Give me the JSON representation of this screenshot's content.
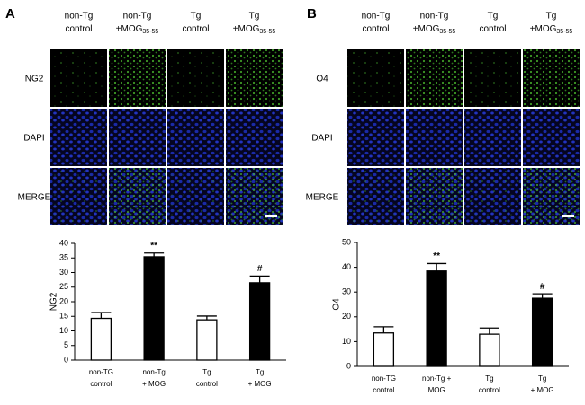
{
  "panels": [
    {
      "letter": "A",
      "columns": [
        {
          "line1": "non-Tg",
          "line2": "control"
        },
        {
          "line1": "non-Tg",
          "line2": "+MOG",
          "sub": "35-55"
        },
        {
          "line1": "Tg",
          "line2": "control"
        },
        {
          "line1": "Tg",
          "line2": "+MOG",
          "sub": "35-55"
        }
      ],
      "rows": [
        "NG2",
        "DAPI",
        "MERGE"
      ]
    },
    {
      "letter": "B",
      "columns": [
        {
          "line1": "non-Tg",
          "line2": "control"
        },
        {
          "line1": "non-Tg",
          "line2": "+MOG",
          "sub": "35-55"
        },
        {
          "line1": "Tg",
          "line2": "control"
        },
        {
          "line1": "Tg",
          "line2": "+MOG",
          "sub": "35-55"
        }
      ],
      "rows": [
        "O4",
        "DAPI",
        "MERGE"
      ]
    }
  ],
  "chart_data": [
    {
      "type": "bar",
      "y_label": "NG2",
      "categories": [
        [
          "non-TG",
          "control"
        ],
        [
          "non-Tg",
          "+ MOG"
        ],
        [
          "Tg",
          "control"
        ],
        [
          "Tg",
          "+ MOG"
        ]
      ],
      "values": [
        14.3,
        35.4,
        13.8,
        26.5
      ],
      "errors": [
        2.0,
        1.3,
        1.3,
        2.3
      ],
      "colors": [
        "#ffffff",
        "#000000",
        "#ffffff",
        "#000000"
      ],
      "bar_annotations": [
        null,
        "**",
        null,
        "#"
      ],
      "ylim": [
        0,
        40
      ],
      "yticks": [
        0,
        5,
        10,
        15,
        20,
        25,
        30,
        35,
        40
      ]
    },
    {
      "type": "bar",
      "y_label": "O4",
      "categories": [
        [
          "non-TG",
          "control"
        ],
        [
          "non-Tg +",
          "MOG"
        ],
        [
          "Tg",
          "control"
        ],
        [
          "Tg",
          "+ MOG"
        ]
      ],
      "values": [
        13.5,
        38.5,
        13.0,
        27.5
      ],
      "errors": [
        2.5,
        3.0,
        2.5,
        1.8
      ],
      "colors": [
        "#ffffff",
        "#000000",
        "#ffffff",
        "#000000"
      ],
      "bar_annotations": [
        null,
        "**",
        null,
        "#"
      ],
      "ylim": [
        0,
        50
      ],
      "yticks": [
        0,
        10,
        20,
        30,
        40,
        50
      ]
    }
  ]
}
